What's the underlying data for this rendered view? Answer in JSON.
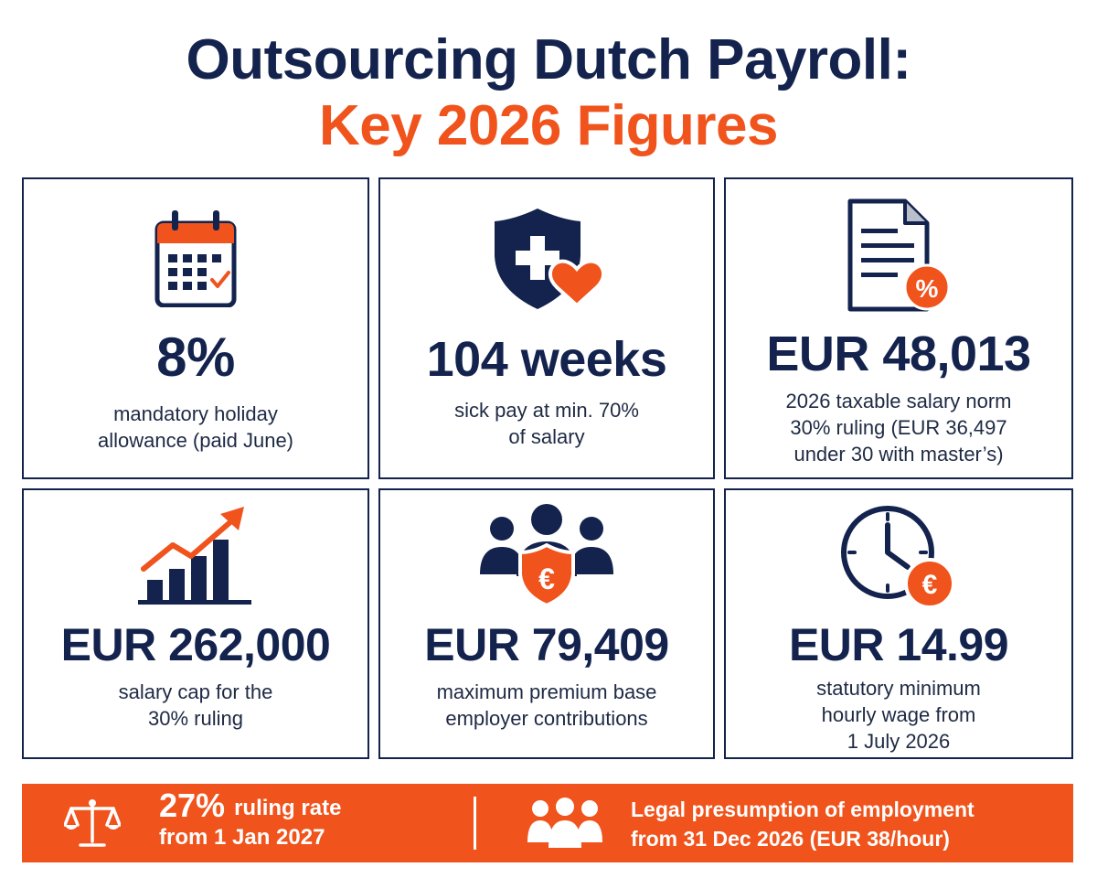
{
  "header": {
    "title_line1": "Outsourcing Dutch Payroll:",
    "title_line2": "Key 2026 Figures"
  },
  "colors": {
    "navy": "#13234d",
    "orange": "#f0531c"
  },
  "cards": [
    {
      "icon": "calendar-check-icon",
      "value": "8%",
      "desc_line1": "mandatory holiday",
      "desc_line2": "allowance (paid June)"
    },
    {
      "icon": "shield-health-heart-icon",
      "value": "104 weeks",
      "desc_line1": "sick pay at min. 70%",
      "desc_line2": "of salary"
    },
    {
      "icon": "document-percent-icon",
      "value": "EUR 48,013",
      "desc_line1": "2026 taxable salary norm",
      "desc_line2": "30% ruling (EUR 36,497",
      "desc_line3": "under 30 with master’s)"
    },
    {
      "icon": "bar-chart-growth-icon",
      "value": "EUR 262,000",
      "desc_line1": "salary cap for the",
      "desc_line2": "30% ruling"
    },
    {
      "icon": "people-euro-shield-icon",
      "value": "EUR 79,409",
      "desc_line1": "maximum premium base",
      "desc_line2": "employer contributions"
    },
    {
      "icon": "clock-euro-icon",
      "value": "EUR 14.99",
      "desc_line1": "statutory minimum",
      "desc_line2": "hourly wage from",
      "desc_line3": "1 July 2026"
    }
  ],
  "banner": {
    "left": {
      "icon": "scales-icon",
      "big": "27%",
      "line1_rest": "ruling rate",
      "line2": "from 1 Jan 2027"
    },
    "right": {
      "icon": "group-icon",
      "line1": "Legal presumption of employment",
      "line2": "from 31 Dec 2026 (EUR 38/hour)"
    }
  }
}
